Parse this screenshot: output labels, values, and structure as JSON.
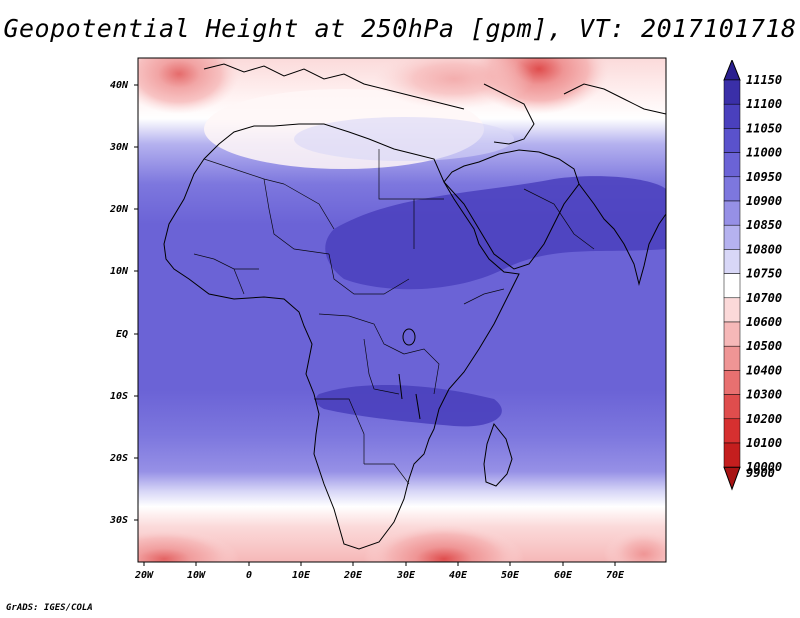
{
  "title": "Geopotential Height at 250hPa [gpm], VT: 2017101718",
  "credit": "GrADS: IGES/COLA",
  "map": {
    "lat_labels": [
      "40N",
      "30N",
      "20N",
      "10N",
      "EQ",
      "10S",
      "20S",
      "30S"
    ],
    "lon_labels": [
      "20W",
      "10W",
      "0",
      "10E",
      "20E",
      "30E",
      "40E",
      "50E",
      "60E",
      "70E"
    ]
  },
  "colorbar": {
    "levels": [
      "11150",
      "11100",
      "11050",
      "11000",
      "10950",
      "10900",
      "10850",
      "10800",
      "10750",
      "10700",
      "10600",
      "10500",
      "10400",
      "10300",
      "10200",
      "10100",
      "10000",
      "9900"
    ],
    "colors": [
      "#2a1f8f",
      "#3a2fa8",
      "#4a40bd",
      "#5a52cc",
      "#6b63d6",
      "#7d77de",
      "#9690e6",
      "#b5b2ef",
      "#d8d7f7",
      "#ffffff",
      "#fbd9d9",
      "#f6b8b8",
      "#ef9595",
      "#e87070",
      "#df4d4d",
      "#d63030",
      "#c41e1e",
      "#a81414"
    ]
  }
}
